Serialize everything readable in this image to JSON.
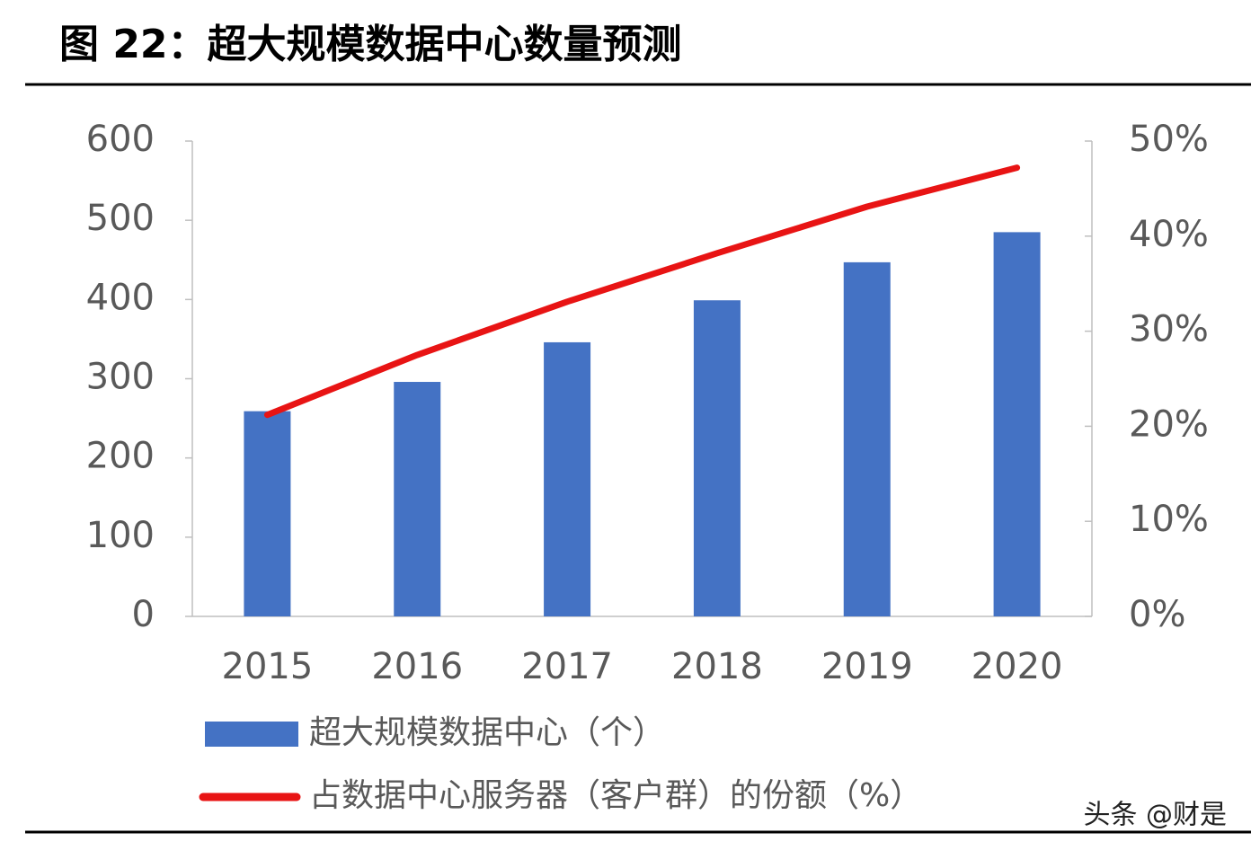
{
  "chart_data": {
    "type": "bar",
    "title": "图 22：超大规模数据中心数量预测",
    "categories": [
      "2015",
      "2016",
      "2017",
      "2018",
      "2019",
      "2020"
    ],
    "series": [
      {
        "name": "超大规模数据中心（个）",
        "type": "bar",
        "color": "#4472c4",
        "values": [
          259,
          296,
          346,
          399,
          447,
          485
        ]
      },
      {
        "name": "占数据中心服务器（客户群）的份额（%）",
        "type": "line",
        "axis": "y2",
        "color": "#e81414",
        "values": [
          21.2,
          27.5,
          33.1,
          38.2,
          43.1,
          47.2
        ]
      }
    ],
    "ylim": [
      0,
      600
    ],
    "yticks": [
      0,
      100,
      200,
      300,
      400,
      500,
      600
    ],
    "y2lim": [
      0,
      50
    ],
    "y2ticks": [
      {
        "value": 0,
        "label": "0%"
      },
      {
        "value": 10,
        "label": "10%"
      },
      {
        "value": 20,
        "label": "20%"
      },
      {
        "value": 30,
        "label": "30%"
      },
      {
        "value": 40,
        "label": "40%"
      },
      {
        "value": 50,
        "label": "50%"
      }
    ],
    "grid": false
  },
  "watermark": "头条 @财是"
}
